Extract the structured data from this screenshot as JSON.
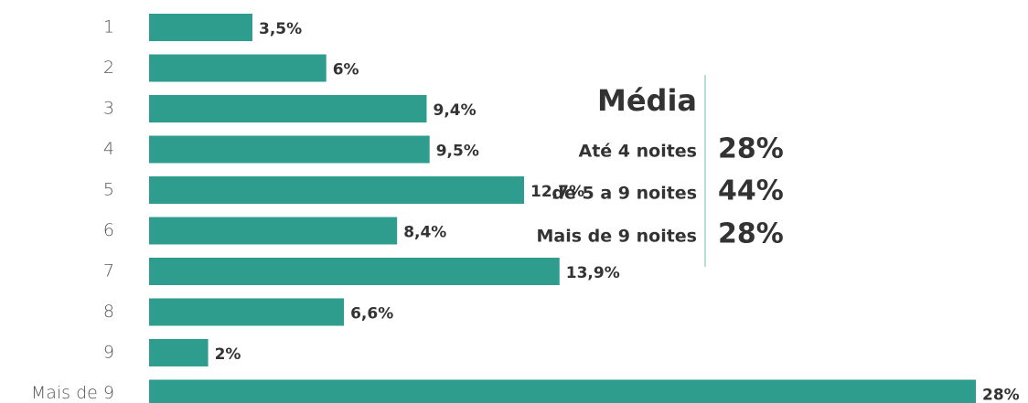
{
  "chart_data": {
    "type": "bar",
    "orientation": "horizontal",
    "categories": [
      "1",
      "2",
      "3",
      "4",
      "5",
      "6",
      "7",
      "8",
      "9",
      "Mais de 9"
    ],
    "values": [
      3.5,
      6,
      9.4,
      9.5,
      12.7,
      8.4,
      13.9,
      6.6,
      2,
      28
    ],
    "value_labels": [
      "3,5%",
      "6%",
      "9,4%",
      "9,5%",
      "12,7%",
      "8,4%",
      "13,9%",
      "6,6%",
      "2%",
      "28%"
    ],
    "color": "#2f9d8e",
    "xlim": [
      0,
      28
    ]
  },
  "summary": {
    "title": "Média",
    "rows": [
      {
        "label": "Até 4 noites",
        "value": "28%"
      },
      {
        "label": "de 5 a 9 noites",
        "value": "44%"
      },
      {
        "label": "Mais de 9 noites",
        "value": "28%"
      }
    ]
  }
}
